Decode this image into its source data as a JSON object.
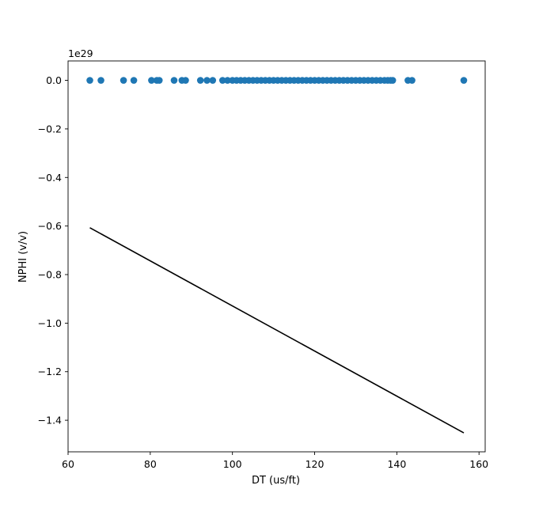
{
  "chart_data": {
    "type": "scatter",
    "xlabel": "DT (us/ft)",
    "ylabel": "NPHI (v/v)",
    "offset_text": "1e29",
    "xlim": [
      60,
      161.5
    ],
    "ylim": [
      -1.53,
      0.08
    ],
    "y_scale_factor": "1e29",
    "x_ticks": [
      60,
      80,
      100,
      120,
      140,
      160
    ],
    "x_tick_labels": [
      "60",
      "80",
      "100",
      "120",
      "140",
      "160"
    ],
    "y_ticks": [
      0.0,
      -0.2,
      -0.4,
      -0.6,
      -0.8,
      -1.0,
      -1.2,
      -1.4
    ],
    "y_tick_labels": [
      "0.0",
      "−0.2",
      "−0.4",
      "−0.6",
      "−0.8",
      "−1.0",
      "−1.2",
      "−1.4"
    ],
    "grid": false,
    "legend": "none",
    "series": [
      {
        "kind": "scatter",
        "color": "#1f77b4",
        "x": [
          65.3,
          68.0,
          73.5,
          76.0,
          80.3,
          81.6,
          82.2,
          85.8,
          87.7,
          88.6,
          92.2,
          93.8,
          95.2,
          97.6,
          98.8,
          100.0,
          101.0,
          102.0,
          103.0,
          104.0,
          105.0,
          106.0,
          107.0,
          108.0,
          109.0,
          110.0,
          111.0,
          112.0,
          113.0,
          114.0,
          115.0,
          116.0,
          117.0,
          118.0,
          119.0,
          120.0,
          121.0,
          122.0,
          123.0,
          124.0,
          125.0,
          126.0,
          127.0,
          128.0,
          129.0,
          130.0,
          131.0,
          132.0,
          133.0,
          134.0,
          135.0,
          136.0,
          137.0,
          137.8,
          138.5,
          139.0,
          142.7,
          143.7,
          156.3
        ],
        "y": [
          0,
          0,
          0,
          0,
          0,
          0,
          0,
          0,
          0,
          0,
          0,
          0,
          0,
          0,
          0,
          0,
          0,
          0,
          0,
          0,
          0,
          0,
          0,
          0,
          0,
          0,
          0,
          0,
          0,
          0,
          0,
          0,
          0,
          0,
          0,
          0,
          0,
          0,
          0,
          0,
          0,
          0,
          0,
          0,
          0,
          0,
          0,
          0,
          0,
          0,
          0,
          0,
          0,
          0,
          0,
          0,
          0,
          0,
          0
        ]
      },
      {
        "kind": "line",
        "color": "#000000",
        "x": [
          65.3,
          156.3
        ],
        "y": [
          -0.607,
          -1.452
        ]
      }
    ]
  }
}
